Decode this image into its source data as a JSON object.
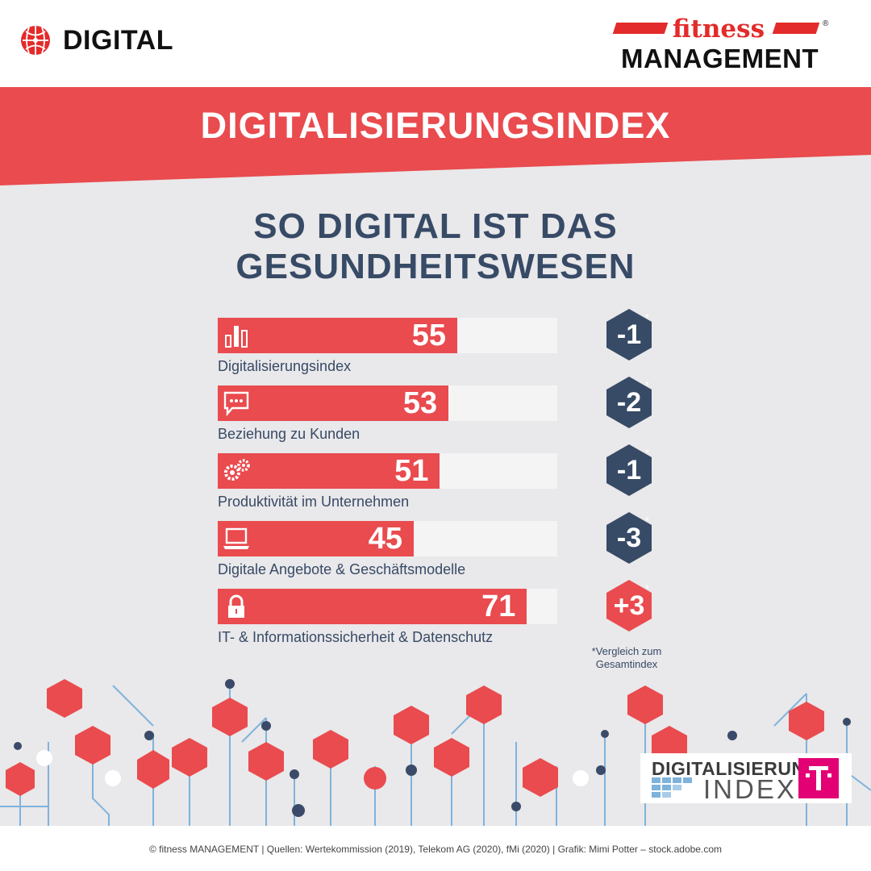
{
  "header": {
    "left_brand": "DIGITAL",
    "right_brand_top": "fitness",
    "right_brand_bottom": "MANAGEMENT",
    "registered_mark": "®"
  },
  "banner": {
    "title": "DIGITALISIERUNGSINDEX",
    "color": "#e94b4e"
  },
  "headline": {
    "line1": "SO DIGITAL IST DAS",
    "line2": "GESUNDHEITSWESEN"
  },
  "chart_data": {
    "type": "bar",
    "orientation": "horizontal",
    "categories": [
      "Digitalisierungsindex",
      "Beziehung zu Kunden",
      "Produktivität im Unternehmen",
      "Digitale Angebote & Geschäftsmodelle",
      "IT- & Informationssicherheit & Datenschutz"
    ],
    "values": [
      55,
      53,
      51,
      45,
      71
    ],
    "value_labels": [
      "55",
      "53",
      "51",
      "45",
      "71"
    ],
    "comparison_labels": [
      "-1",
      "-2",
      "-1",
      "-3",
      "+3"
    ],
    "comparison_asterisk": "*",
    "icons": [
      "bar-chart-icon",
      "chat-bubble-icon",
      "gears-icon",
      "laptop-icon",
      "padlock-icon"
    ],
    "xlim": [
      0,
      100
    ],
    "bar_color": "#e94b4e",
    "track_color": "#f5f4f5",
    "comparison_colors": [
      "#374a66",
      "#374a66",
      "#374a66",
      "#374a66",
      "#e94b4e"
    ],
    "note": "*Vergleich zum Gesamtindex"
  },
  "logo_badge": {
    "line1": "DIGITALISIERUNGS",
    "line2": "INDEX"
  },
  "footer": {
    "text": "© fitness MANAGEMENT  | Quellen: Wertekommission (2019), Telekom AG (2020), fMi (2020)  |  Grafik: Mimi Potter – stock.adobe.com"
  },
  "colors": {
    "navy": "#374a66",
    "red": "#e94b4e",
    "background": "#e9e8ea",
    "telekom": "#e20074"
  }
}
